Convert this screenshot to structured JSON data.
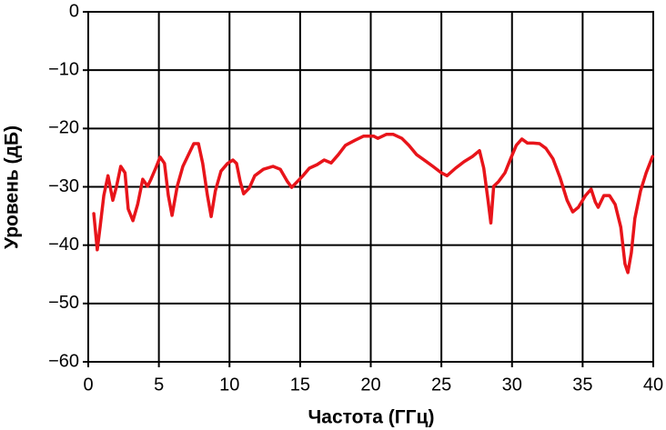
{
  "chart_data": {
    "type": "line",
    "x_label": "Частота (ГГц)",
    "y_label": "Уровень (дБ)",
    "xlim": [
      0,
      40
    ],
    "xticks": [
      0,
      5,
      10,
      15,
      20,
      25,
      30,
      35,
      40
    ],
    "ylim": [
      -60,
      0
    ],
    "yticks": [
      0,
      {
        "value": -10,
        "label": "−10"
      },
      {
        "value": -20,
        "label": "−20"
      },
      {
        "value": -30,
        "label": "−30"
      },
      {
        "value": -40,
        "label": "−40"
      },
      {
        "value": -50,
        "label": "−50"
      },
      {
        "value": -60,
        "label": "−60"
      }
    ],
    "grid": true,
    "x": [
      0.39,
      0.64,
      0.84,
      1.1,
      1.4,
      1.74,
      2.0,
      2.3,
      2.6,
      2.83,
      3.16,
      3.5,
      3.86,
      4.2,
      4.44,
      4.77,
      5.09,
      5.4,
      5.67,
      5.93,
      6.3,
      6.7,
      7.09,
      7.47,
      7.8,
      8.1,
      8.44,
      8.7,
      9.0,
      9.4,
      9.86,
      10.24,
      10.5,
      10.76,
      11.0,
      11.4,
      11.79,
      12.4,
      13.08,
      13.6,
      14.1,
      14.4,
      14.8,
      15.2,
      15.65,
      16.2,
      16.7,
      17.2,
      17.7,
      18.2,
      18.9,
      19.5,
      20.2,
      20.5,
      21.1,
      21.6,
      22.2,
      22.7,
      23.25,
      23.9,
      24.4,
      25.0,
      25.4,
      26.0,
      26.6,
      27.2,
      27.7,
      28.0,
      28.3,
      28.5,
      28.7,
      29.05,
      29.5,
      29.9,
      30.3,
      30.7,
      31.1,
      31.5,
      31.95,
      32.4,
      32.9,
      33.4,
      33.9,
      34.3,
      34.7,
      35.2,
      35.6,
      35.9,
      36.1,
      36.5,
      36.9,
      37.3,
      37.7,
      38.0,
      38.2,
      38.45,
      38.7,
      39.1,
      39.5,
      39.95
    ],
    "series": [
      {
        "color": "#e8141a",
        "values": [
          -34.6,
          -40.8,
          -36.9,
          -31.5,
          -28.1,
          -32.3,
          -29.9,
          -26.5,
          -27.6,
          -33.8,
          -35.8,
          -33.0,
          -28.7,
          -29.9,
          -28.7,
          -26.8,
          -24.9,
          -26.0,
          -31.5,
          -34.9,
          -29.9,
          -26.5,
          -24.5,
          -22.6,
          -22.6,
          -26.0,
          -31.5,
          -35.1,
          -30.7,
          -27.3,
          -26.0,
          -25.4,
          -26.0,
          -29.1,
          -31.2,
          -30.2,
          -28.1,
          -27.0,
          -26.5,
          -27.0,
          -29.1,
          -30.1,
          -29.1,
          -28.1,
          -26.8,
          -26.2,
          -25.4,
          -25.9,
          -24.5,
          -22.9,
          -22.0,
          -21.3,
          -21.3,
          -21.7,
          -21.0,
          -21.0,
          -21.7,
          -22.9,
          -24.5,
          -25.6,
          -26.5,
          -27.6,
          -28.1,
          -26.8,
          -25.7,
          -24.8,
          -23.8,
          -26.8,
          -32.3,
          -36.2,
          -29.9,
          -29.1,
          -27.6,
          -25.2,
          -22.9,
          -21.8,
          -22.5,
          -22.5,
          -22.6,
          -23.4,
          -25.2,
          -28.4,
          -32.3,
          -34.3,
          -33.5,
          -31.5,
          -30.4,
          -32.6,
          -33.5,
          -31.5,
          -31.5,
          -33.0,
          -36.9,
          -43.2,
          -44.7,
          -41.3,
          -35.4,
          -30.7,
          -27.6,
          -24.8
        ]
      }
    ]
  }
}
